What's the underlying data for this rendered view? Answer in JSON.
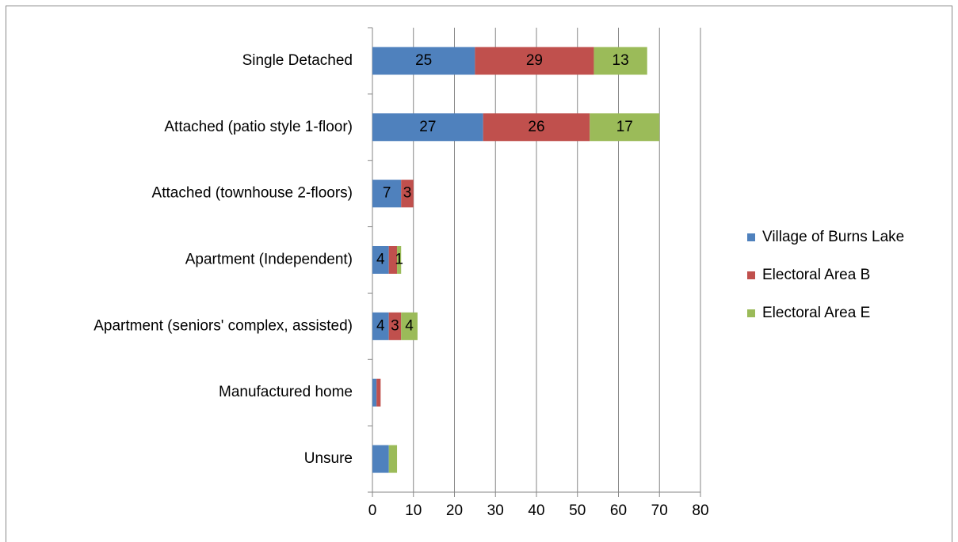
{
  "chart_data": {
    "type": "stacked_bar_horizontal",
    "categories": [
      "Single Detached",
      "Attached (patio style 1-floor)",
      "Attached (townhouse 2-floors)",
      "Apartment (Independent)",
      "Apartment (seniors' complex, assisted)",
      "Manufactured home",
      "Unsure"
    ],
    "series": [
      {
        "name": "Village of Burns Lake",
        "color": "#4f81bd",
        "values": [
          25,
          27,
          7,
          4,
          4,
          1,
          4
        ],
        "value_labels": [
          "25",
          "27",
          "7",
          "4",
          "4",
          null,
          null
        ]
      },
      {
        "name": "Electoral Area B",
        "color": "#c0504d",
        "values": [
          29,
          26,
          3,
          2,
          3,
          1,
          0
        ],
        "value_labels": [
          "29",
          "26",
          "3",
          null,
          "3",
          null,
          null
        ]
      },
      {
        "name": "Electoral Area E",
        "color": "#9bbb59",
        "values": [
          13,
          17,
          0,
          1,
          4,
          0,
          2
        ],
        "value_labels": [
          "13",
          "17",
          null,
          "1",
          "4",
          null,
          null
        ]
      }
    ],
    "xlim": [
      0,
      80
    ],
    "xticks": [
      0,
      10,
      20,
      30,
      40,
      50,
      60,
      70,
      80
    ],
    "grid": true,
    "legend": "right"
  }
}
